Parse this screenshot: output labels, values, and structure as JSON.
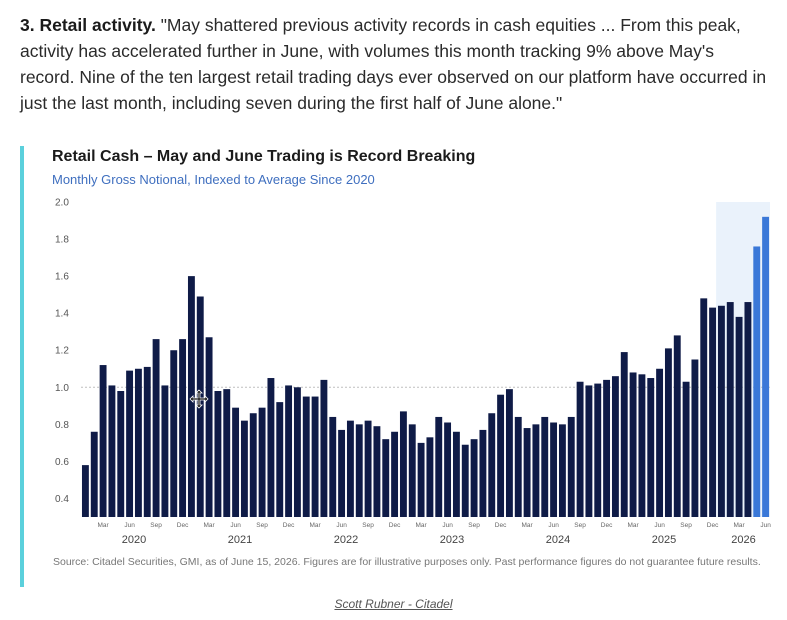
{
  "intro": {
    "lead": "3. Retail activity.",
    "quote": " \"May shattered previous activity records in cash equities ... From this peak, activity has accelerated further in June, with volumes this month tracking 9% above May's record. Nine of the ten largest retail trading days ever observed on our platform have occurred in just the last month, including seven during the first half of June alone.\""
  },
  "chart_data": {
    "type": "bar",
    "title": "Retail Cash – May and June Trading is Record Breaking",
    "subtitle": "Monthly Gross Notional, Indexed to Average Since 2020",
    "xlabel": "",
    "ylabel": "",
    "ylim": [
      0.3,
      2.0
    ],
    "yticks": [
      0.4,
      0.6,
      0.8,
      1.0,
      1.2,
      1.4,
      1.6,
      1.8,
      2.0
    ],
    "reference_line": 1.0,
    "grid": false,
    "month_ticks": [
      "Mar",
      "Jun",
      "Sep",
      "Dec"
    ],
    "years": [
      "2020",
      "2021",
      "2022",
      "2023",
      "2024",
      "2025",
      "2026"
    ],
    "x": [
      "2020-01",
      "2020-02",
      "2020-03",
      "2020-04",
      "2020-05",
      "2020-06",
      "2020-07",
      "2020-08",
      "2020-09",
      "2020-10",
      "2020-11",
      "2020-12",
      "2021-01",
      "2021-02",
      "2021-03",
      "2021-04",
      "2021-05",
      "2021-06",
      "2021-07",
      "2021-08",
      "2021-09",
      "2021-10",
      "2021-11",
      "2021-12",
      "2022-01",
      "2022-02",
      "2022-03",
      "2022-04",
      "2022-05",
      "2022-06",
      "2022-07",
      "2022-08",
      "2022-09",
      "2022-10",
      "2022-11",
      "2022-12",
      "2023-01",
      "2023-02",
      "2023-03",
      "2023-04",
      "2023-05",
      "2023-06",
      "2023-07",
      "2023-08",
      "2023-09",
      "2023-10",
      "2023-11",
      "2023-12",
      "2024-01",
      "2024-02",
      "2024-03",
      "2024-04",
      "2024-05",
      "2024-06",
      "2024-07",
      "2024-08",
      "2024-09",
      "2024-10",
      "2024-11",
      "2024-12",
      "2025-01",
      "2025-02",
      "2025-03",
      "2025-04",
      "2025-05",
      "2025-06",
      "2025-07",
      "2025-08",
      "2025-09",
      "2025-10",
      "2025-11",
      "2025-12",
      "2026-01",
      "2026-02",
      "2026-03",
      "2026-04",
      "2026-05",
      "2026-06"
    ],
    "values": [
      0.58,
      0.76,
      1.12,
      1.01,
      0.98,
      1.09,
      1.1,
      1.11,
      1.26,
      1.01,
      1.2,
      1.26,
      1.6,
      1.49,
      1.27,
      0.98,
      0.99,
      0.89,
      0.82,
      0.86,
      0.89,
      1.05,
      0.92,
      1.01,
      1.0,
      0.95,
      0.95,
      1.04,
      0.84,
      0.77,
      0.82,
      0.8,
      0.82,
      0.79,
      0.72,
      0.76,
      0.87,
      0.8,
      0.7,
      0.73,
      0.84,
      0.81,
      0.76,
      0.69,
      0.72,
      0.77,
      0.86,
      0.96,
      0.99,
      0.84,
      0.78,
      0.8,
      0.84,
      0.81,
      0.8,
      0.84,
      1.03,
      1.01,
      1.02,
      1.04,
      1.06,
      1.19,
      1.08,
      1.07,
      1.05,
      1.1,
      1.21,
      1.28,
      1.03,
      1.15,
      1.48,
      1.43,
      1.44,
      1.46,
      1.38,
      1.46,
      1.76,
      1.92
    ],
    "colors": {
      "bar": "#0f1b47",
      "highlight": "#3a78d8",
      "highlight_band": "#eaf2fb",
      "reference": "#bfbfbf"
    },
    "highlight_last": 2,
    "highlight_band_from_index": 72
  },
  "source": "Source: Citadel Securities, GMI, as of June 15, 2026. Figures are for illustrative purposes only. Past performance figures do not guarantee future results.",
  "credit": "Scott Rubner - Citadel"
}
